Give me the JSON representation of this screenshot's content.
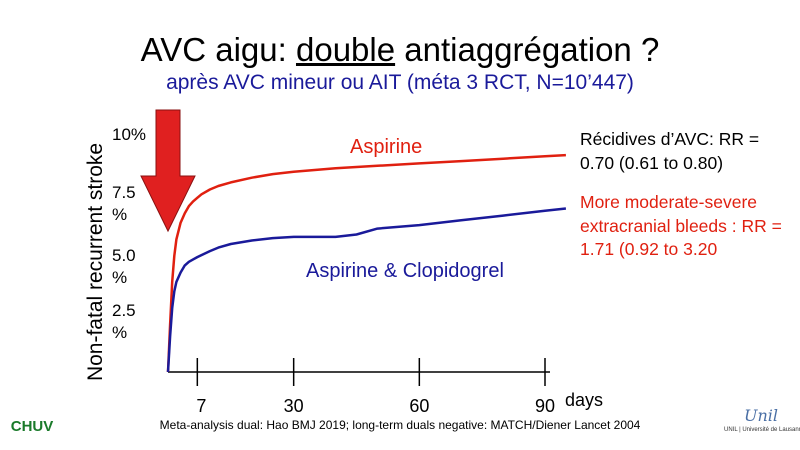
{
  "slide": {
    "title_part1": "AVC aigu: ",
    "title_emph": "double",
    "title_part2": " antiaggrégation ?",
    "subtitle": "après AVC mineur ou AIT (méta 3 RCT, N=10’447)"
  },
  "notes": {
    "recurrence": "Récidives d’AVC: RR = 0.70 (0.61 to 0.80)",
    "bleeding": "More moderate-severe extracranial bleeds : RR = 1.71 (0.92 to 3.20"
  },
  "footnote": "Meta-analysis dual: Hao BMJ 2019; long-term duals negative: MATCH/Diener Lancet 2004",
  "logos": {
    "left": "CHUV",
    "right_script": "Unil",
    "right_caption": "UNIL | Université de Lausanne"
  },
  "chart_data": {
    "type": "line",
    "ylabel": "Non-fatal recurrent stroke",
    "xlabel_unit": "days",
    "ylim": [
      0,
      10
    ],
    "xlim": [
      0,
      90
    ],
    "x_ticks": [
      7,
      30,
      60,
      90
    ],
    "x_tick_labels": [
      "7",
      "30",
      "60",
      "90"
    ],
    "y_ticks": [
      2.5,
      5.0,
      7.5,
      10
    ],
    "y_tick_labels": [
      "2.5 %",
      "5.0 %",
      "7.5 %",
      "10%"
    ],
    "grid": false,
    "series": [
      {
        "name": "Aspirine",
        "color": "#e02010",
        "x": [
          0,
          0.5,
          1,
          1.5,
          2,
          3,
          4,
          5,
          6,
          7,
          8,
          10,
          12,
          15,
          20,
          25,
          30,
          40,
          50,
          60,
          70,
          80,
          90,
          95
        ],
        "y": [
          0,
          2.0,
          3.8,
          4.9,
          5.6,
          6.3,
          6.7,
          7.0,
          7.2,
          7.35,
          7.5,
          7.7,
          7.85,
          8.0,
          8.2,
          8.35,
          8.45,
          8.6,
          8.7,
          8.8,
          8.9,
          9.0,
          9.1,
          9.15
        ]
      },
      {
        "name": "Aspirine & Clopidogrel",
        "color": "#1a1a9a",
        "x": [
          0,
          0.5,
          1,
          1.5,
          2,
          3,
          4,
          5,
          6,
          7,
          10,
          12,
          15,
          20,
          25,
          30,
          40,
          45,
          50,
          60,
          70,
          80,
          90,
          95
        ],
        "y": [
          0,
          1.5,
          2.7,
          3.4,
          3.8,
          4.2,
          4.5,
          4.65,
          4.75,
          4.85,
          5.1,
          5.25,
          5.4,
          5.55,
          5.65,
          5.7,
          5.7,
          5.8,
          6.05,
          6.2,
          6.4,
          6.6,
          6.8,
          6.9
        ]
      }
    ],
    "annotation": {
      "type": "arrow",
      "color": "#e02020",
      "x": 0,
      "y_from": 10,
      "y_to": 7.0
    }
  }
}
